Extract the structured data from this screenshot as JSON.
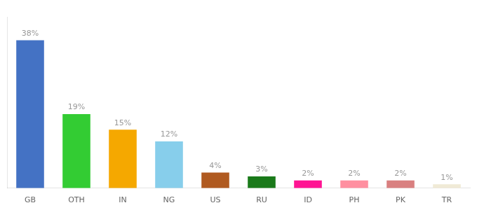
{
  "chart_data": {
    "type": "bar",
    "categories": [
      "GB",
      "OTH",
      "IN",
      "NG",
      "US",
      "RU",
      "ID",
      "PH",
      "PK",
      "TR"
    ],
    "values": [
      38,
      19,
      15,
      12,
      4,
      3,
      2,
      2,
      2,
      1
    ],
    "value_labels": [
      "38%",
      "19%",
      "15%",
      "12%",
      "4%",
      "3%",
      "2%",
      "2%",
      "2%",
      "1%"
    ],
    "colors": [
      "#4472c4",
      "#33cc33",
      "#f5a800",
      "#87ceeb",
      "#b05a20",
      "#1a7a1a",
      "#ff1493",
      "#ff8fa0",
      "#d98080",
      "#f0ead6"
    ],
    "ylim": [
      0,
      44
    ],
    "data_labels": true,
    "tick_labels": "x",
    "grid": false
  }
}
